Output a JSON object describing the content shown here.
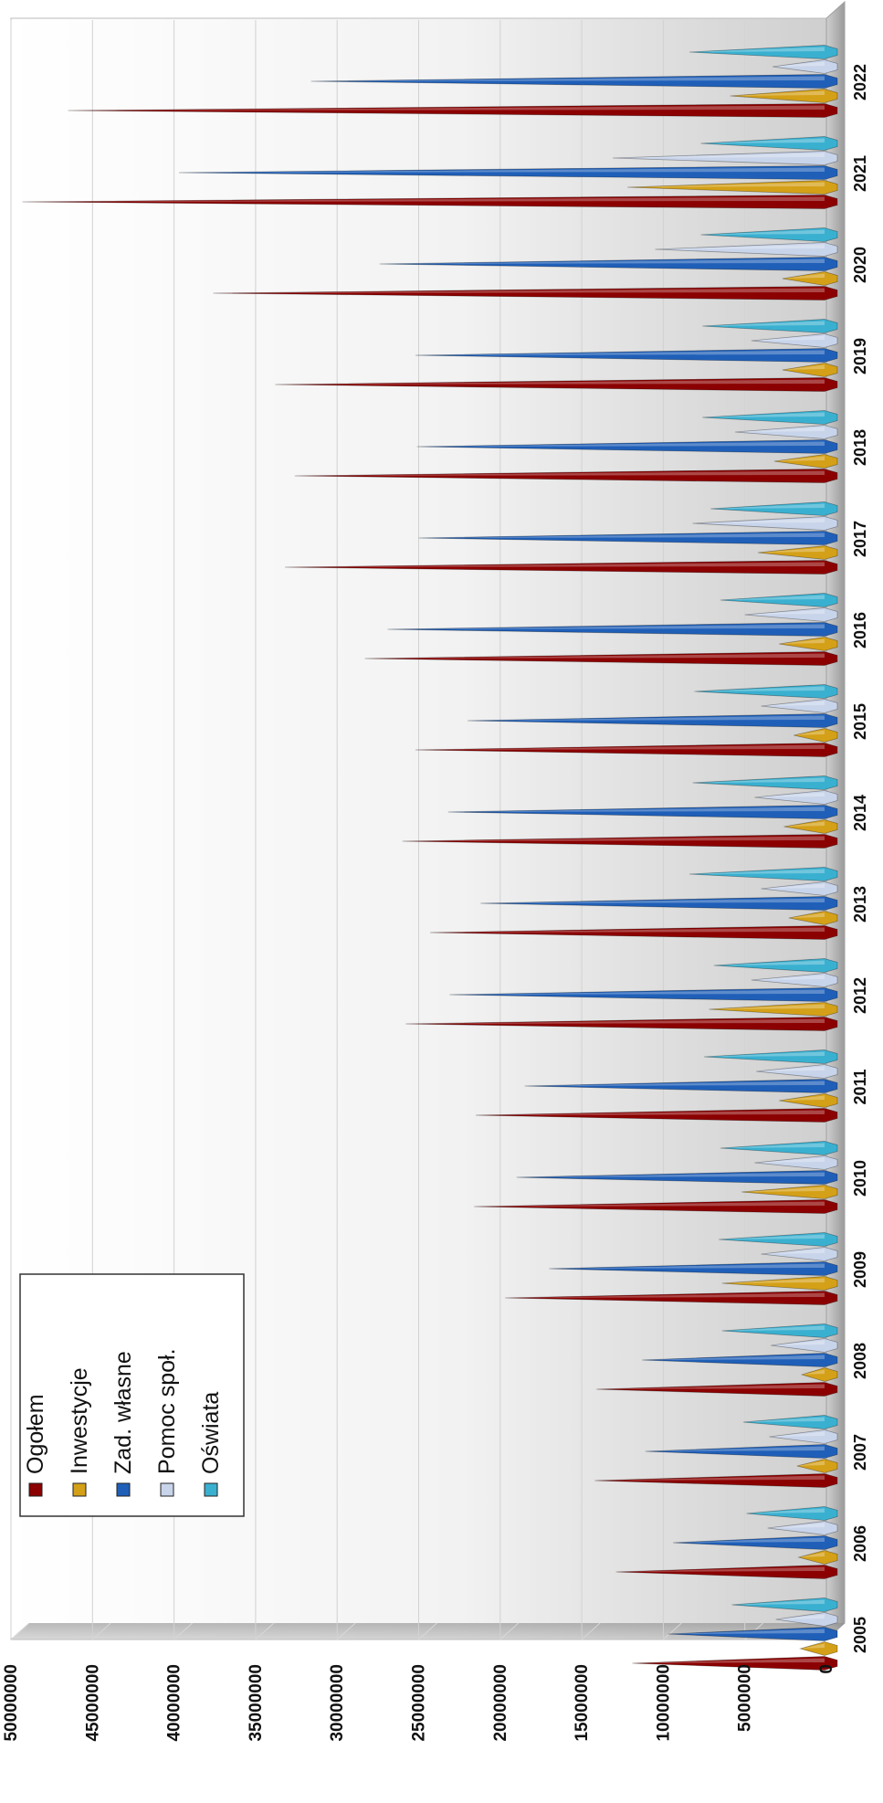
{
  "chart_data": {
    "type": "bar",
    "orientation": "horizontal, figure rotated 90 degrees",
    "style": "3D cone bars",
    "categories": [
      "2005",
      "2006",
      "2007",
      "2008",
      "2009",
      "2010",
      "2011",
      "2012",
      "2013",
      "2014",
      "2015",
      "2016",
      "2017",
      "2018",
      "2019",
      "2020",
      "2021",
      "2022"
    ],
    "series": [
      {
        "name": "Ogołem",
        "color": "#8b0000",
        "values": [
          11900000,
          12900000,
          14200000,
          14100000,
          19700000,
          21600000,
          21500000,
          25800000,
          24300000,
          26000000,
          25200000,
          28300000,
          33200000,
          32600000,
          33800000,
          37600000,
          49300000,
          46500000
        ]
      },
      {
        "name": "Inwestycje",
        "color": "#d4a017",
        "values": [
          1600000,
          1700000,
          1800000,
          1500000,
          6400000,
          5200000,
          2900000,
          7200000,
          2300000,
          2600000,
          2000000,
          2900000,
          4200000,
          3200000,
          2700000,
          2700000,
          12200000,
          5900000
        ]
      },
      {
        "name": "Zad. własne",
        "color": "#1f5fb8",
        "values": [
          9700000,
          9400000,
          11100000,
          11300000,
          17000000,
          19000000,
          18500000,
          23100000,
          21200000,
          23200000,
          22000000,
          26900000,
          25000000,
          25100000,
          25200000,
          27400000,
          39700000,
          31600000
        ]
      },
      {
        "name": "Pomoc społ.",
        "color": "#c8d4ea",
        "values": [
          3100000,
          3600000,
          3500000,
          3400000,
          4000000,
          4400000,
          4300000,
          4600000,
          4000000,
          4400000,
          4000000,
          5000000,
          8200000,
          5600000,
          4600000,
          10500000,
          13100000,
          3300000
        ]
      },
      {
        "name": "Oświata",
        "color": "#3ab0d0",
        "values": [
          5800000,
          4900000,
          5100000,
          6400000,
          6600000,
          6500000,
          7500000,
          6900000,
          8400000,
          8200000,
          8100000,
          6500000,
          7100000,
          7600000,
          7600000,
          7700000,
          7700000,
          8400000
        ]
      }
    ],
    "ylim": [
      0,
      50000000
    ],
    "yticks": [
      "0",
      "5000000",
      "10000000",
      "15000000",
      "20000000",
      "25000000",
      "30000000",
      "35000000",
      "40000000",
      "45000000",
      "50000000"
    ],
    "grid": true,
    "legend": "top-left"
  }
}
